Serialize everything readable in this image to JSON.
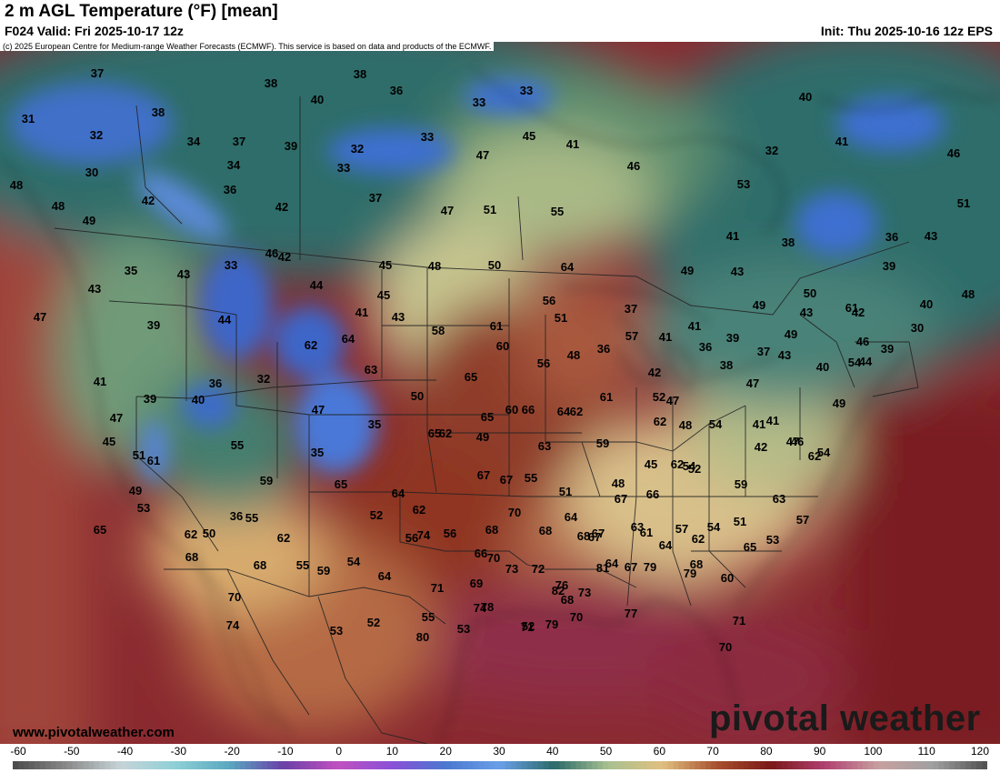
{
  "header": {
    "title": "2 m AGL Temperature (°F) [mean]",
    "valid": "F024 Valid: Fri 2025-10-17 12z",
    "init": "Init: Thu 2025-10-16 12z EPS"
  },
  "credit": "(c) 2025 European Centre for Medium-range Weather Forecasts (ECMWF). This service is based on data and products of the ECMWF.",
  "footer": {
    "site": "www.pivotalweather.com",
    "logo": "pivotal weather"
  },
  "colorbar": {
    "ticks": [
      "-60",
      "-50",
      "-40",
      "-30",
      "-20",
      "-10",
      "0",
      "10",
      "20",
      "30",
      "40",
      "50",
      "60",
      "70",
      "80",
      "90",
      "100",
      "110",
      "120"
    ],
    "min": -60,
    "max": 120,
    "stops": [
      {
        "v": -60,
        "c": "#4a4a4a"
      },
      {
        "v": -50,
        "c": "#8a8a8a"
      },
      {
        "v": -40,
        "c": "#c6d4d8"
      },
      {
        "v": -30,
        "c": "#8ed0d6"
      },
      {
        "v": -20,
        "c": "#5aa8c0"
      },
      {
        "v": -10,
        "c": "#6a40a8"
      },
      {
        "v": 0,
        "c": "#c050c0"
      },
      {
        "v": 10,
        "c": "#8a50d8"
      },
      {
        "v": 20,
        "c": "#4a78d0"
      },
      {
        "v": 30,
        "c": "#6aa0e8"
      },
      {
        "v": 40,
        "c": "#2a6a6a"
      },
      {
        "v": 50,
        "c": "#a8c090"
      },
      {
        "v": 60,
        "c": "#e0c080"
      },
      {
        "v": 70,
        "c": "#a85030"
      },
      {
        "v": 80,
        "c": "#7a1818"
      },
      {
        "v": 90,
        "c": "#b04070"
      },
      {
        "v": 100,
        "c": "#c8a0a0"
      },
      {
        "v": 110,
        "c": "#a0a0a0"
      },
      {
        "v": 120,
        "c": "#505050"
      }
    ]
  },
  "map_values": [
    "37",
    "38",
    "38",
    "36",
    "33",
    "33",
    "40",
    "31",
    "32",
    "38",
    "34",
    "37",
    "39",
    "32",
    "33",
    "45",
    "41",
    "30",
    "34",
    "33",
    "36",
    "47",
    "48",
    "46",
    "42",
    "37",
    "47",
    "51",
    "55",
    "42",
    "32",
    "41",
    "40",
    "48",
    "49",
    "46",
    "53",
    "51",
    "41",
    "38",
    "36",
    "43",
    "42",
    "43",
    "33",
    "46",
    "45",
    "48",
    "50",
    "64",
    "49",
    "43",
    "39",
    "50",
    "35",
    "43",
    "48",
    "61",
    "56",
    "45",
    "40",
    "44",
    "44",
    "39",
    "41",
    "37",
    "41",
    "43",
    "47",
    "58",
    "61",
    "57",
    "51",
    "49",
    "41",
    "49",
    "39",
    "43",
    "42",
    "30",
    "36",
    "62",
    "64",
    "60",
    "48",
    "36",
    "47",
    "37",
    "46",
    "43",
    "54",
    "39",
    "41",
    "63",
    "65",
    "56",
    "47",
    "42",
    "38",
    "40",
    "44",
    "36",
    "32",
    "39",
    "60",
    "62",
    "61",
    "52",
    "40",
    "47",
    "50",
    "35",
    "47",
    "62",
    "65",
    "66",
    "64",
    "48",
    "49",
    "45",
    "51",
    "49",
    "65",
    "62",
    "54",
    "41",
    "41",
    "46",
    "55",
    "35",
    "63",
    "59",
    "42",
    "47",
    "54",
    "61",
    "67",
    "67",
    "55",
    "45",
    "54",
    "65",
    "64",
    "51",
    "48",
    "52",
    "59",
    "62",
    "49",
    "59",
    "62",
    "67",
    "66",
    "62",
    "63",
    "57",
    "51",
    "53",
    "36",
    "52",
    "56",
    "68",
    "70",
    "64",
    "63",
    "57",
    "54",
    "53",
    "65",
    "55",
    "54",
    "56",
    "66",
    "68",
    "67",
    "61",
    "62",
    "65",
    "60",
    "50",
    "62",
    "64",
    "74",
    "70",
    "68",
    "67",
    "64",
    "68",
    "62",
    "59",
    "72",
    "81",
    "82",
    "79",
    "68",
    "68",
    "55",
    "69",
    "73",
    "76",
    "73",
    "68",
    "67",
    "70",
    "71",
    "74",
    "52",
    "70",
    "77",
    "79",
    "64",
    "71",
    "74",
    "52",
    "55",
    "53",
    "78",
    "71",
    "79",
    "70",
    "53",
    "80"
  ]
}
